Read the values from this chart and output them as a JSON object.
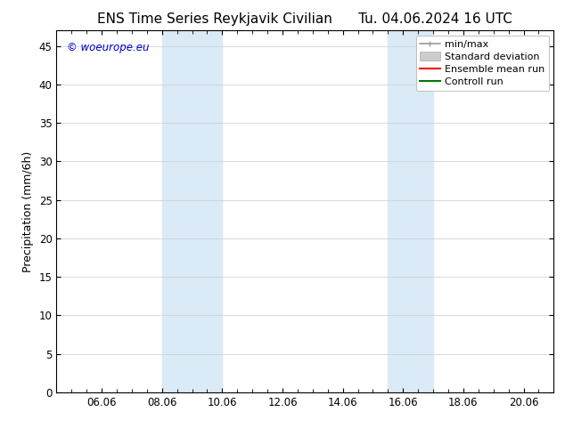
{
  "title_left": "ENS Time Series Reykjavik Civilian",
  "title_right": "Tu. 04.06.2024 16 UTC",
  "ylabel": "Precipitation (mm/6h)",
  "xlabel": "",
  "background_color": "#ffffff",
  "plot_bg_color": "#ffffff",
  "ylim": [
    0,
    47
  ],
  "yticks": [
    0,
    5,
    10,
    15,
    20,
    25,
    30,
    35,
    40,
    45
  ],
  "xtick_labels": [
    "06.06",
    "08.06",
    "10.06",
    "12.06",
    "14.06",
    "16.06",
    "18.06",
    "20.06"
  ],
  "xtick_positions": [
    6,
    8,
    10,
    12,
    14,
    16,
    18,
    20
  ],
  "xmin": 4.5,
  "xmax": 21.0,
  "shaded_bands": [
    {
      "xmin": 8.0,
      "xmax": 10.0,
      "color": "#daeaf7"
    },
    {
      "xmin": 15.5,
      "xmax": 17.0,
      "color": "#daeaf7"
    }
  ],
  "watermark_text": "© woeurope.eu",
  "watermark_color": "#0000cc",
  "legend_entries": [
    {
      "label": "min/max",
      "color": "#999999",
      "lw": 1.2,
      "ls": "-",
      "type": "line_caps"
    },
    {
      "label": "Standard deviation",
      "color": "#cccccc",
      "lw": 6,
      "ls": "-",
      "type": "patch"
    },
    {
      "label": "Ensemble mean run",
      "color": "#ff0000",
      "lw": 1.5,
      "ls": "-",
      "type": "line"
    },
    {
      "label": "Controll run",
      "color": "#007700",
      "lw": 1.5,
      "ls": "-",
      "type": "line"
    }
  ],
  "title_fontsize": 11,
  "label_fontsize": 9,
  "tick_fontsize": 8.5,
  "legend_fontsize": 8
}
